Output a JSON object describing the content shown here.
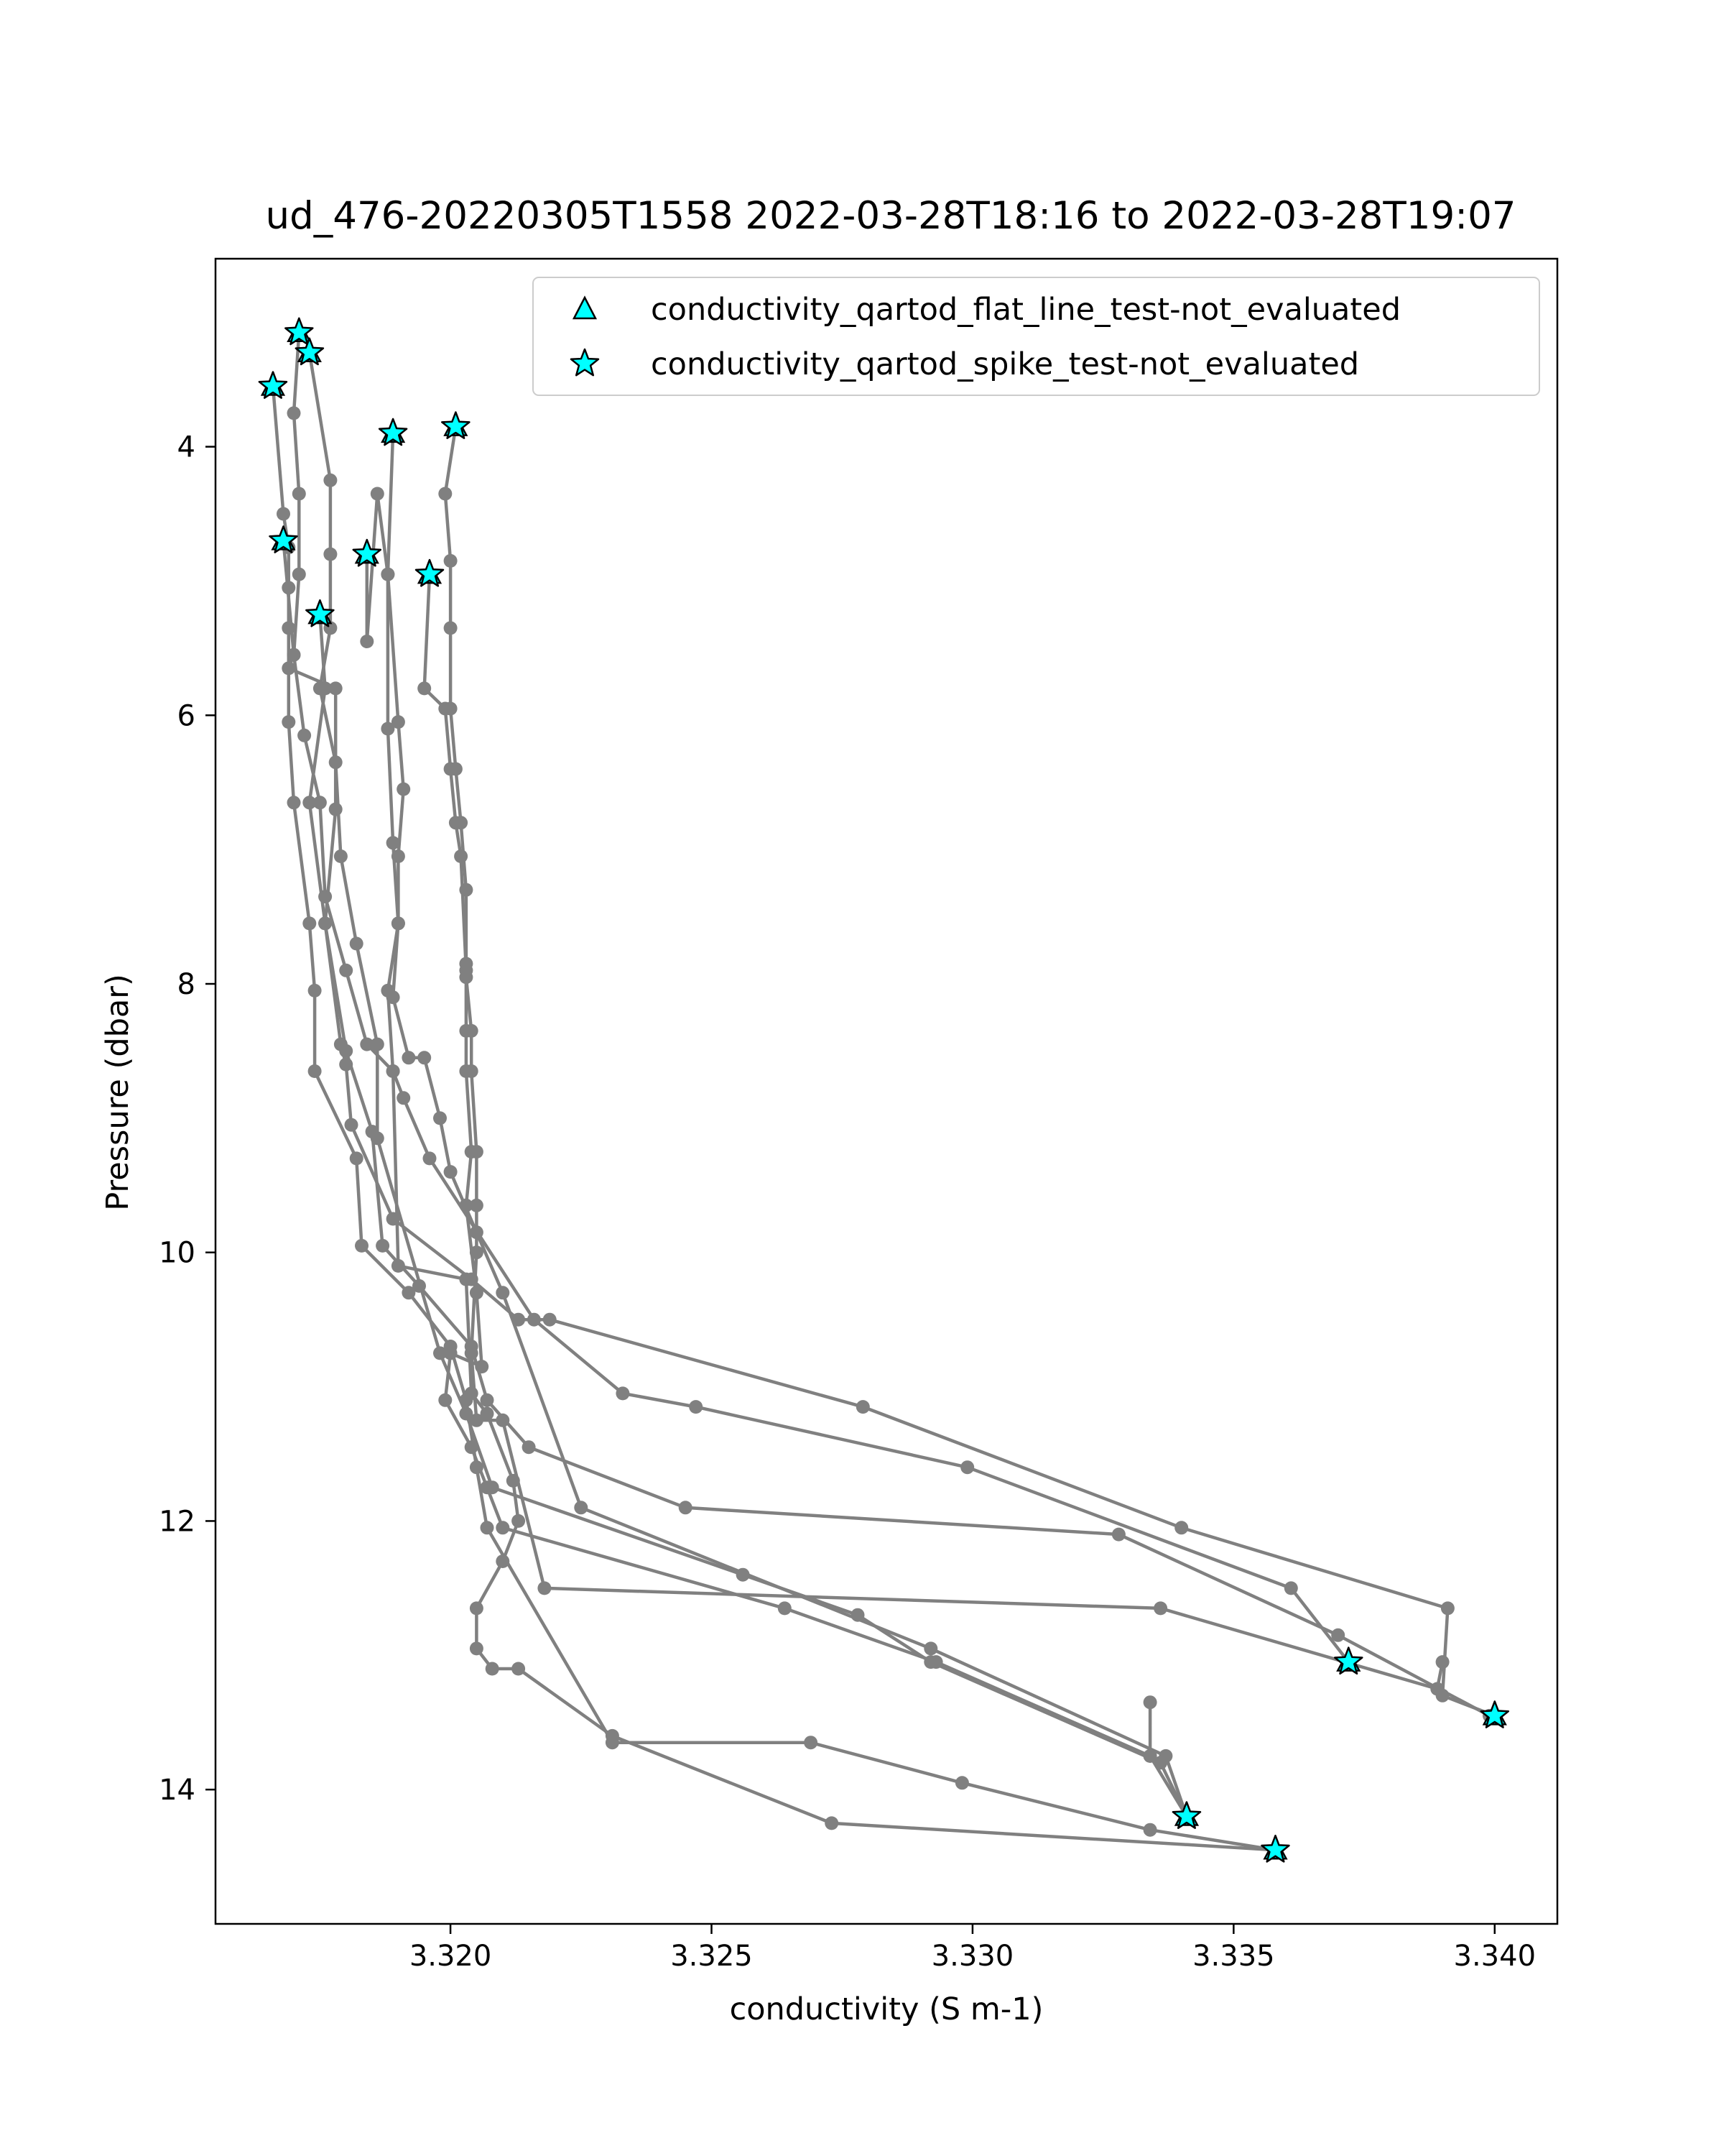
{
  "chart_data": {
    "type": "scatter",
    "title": "ud_476-20220305T1558 2022-03-28T18:16 to 2022-03-28T19:07",
    "xlabel": "conductivity (S m-1)",
    "ylabel": "Pressure (dbar)",
    "xlim": [
      3.3155,
      3.3412
    ],
    "ylim": [
      15.0,
      2.6
    ],
    "y_inverted": true,
    "x_ticks": [
      3.32,
      3.325,
      3.33,
      3.335,
      3.34
    ],
    "x_tick_labels": [
      "3.320",
      "3.325",
      "3.330",
      "3.335",
      "3.340"
    ],
    "y_ticks": [
      4,
      6,
      8,
      10,
      12,
      14
    ],
    "y_tick_labels": [
      "4",
      "6",
      "8",
      "10",
      "12",
      "14"
    ],
    "grid": false,
    "legend_position": "top-right",
    "legend": [
      {
        "label": "conductivity_qartod_flat_line_test-not_evaluated",
        "marker": "triangle",
        "color": "#00ffff"
      },
      {
        "label": "conductivity_qartod_spike_test-not_evaluated",
        "marker": "star",
        "color": "#00ffff"
      }
    ],
    "line_color": "#808080",
    "profiles": [
      {
        "x": [
          3.3166,
          3.3168,
          3.3169,
          3.3169,
          3.3169,
          3.3169,
          3.317,
          3.3173,
          3.3174,
          3.3174,
          3.3182,
          3.3183,
          3.3192,
          3.32,
          3.3203,
          3.3205,
          3.3207,
          3.3231,
          3.3269,
          3.3298,
          3.3334,
          3.3358
        ],
        "y": [
          3.55,
          4.5,
          4.75,
          5.05,
          5.35,
          6.05,
          6.65,
          7.55,
          8.05,
          8.65,
          9.3,
          9.95,
          10.3,
          10.7,
          11.1,
          11.6,
          12.05,
          13.65,
          13.65,
          13.95,
          14.3,
          14.45
        ]
      },
      {
        "x": [
          3.3171,
          3.317,
          3.3171,
          3.3171,
          3.317,
          3.3169,
          3.3178,
          3.3178,
          3.3176,
          3.318,
          3.3185,
          3.3187,
          3.3194,
          3.3204,
          3.3207,
          3.3215,
          3.3245,
          3.3328,
          3.337,
          3.3399
        ],
        "y": [
          3.15,
          3.75,
          4.35,
          4.95,
          5.55,
          5.65,
          5.8,
          6.7,
          7.55,
          8.5,
          9.1,
          9.95,
          10.25,
          10.7,
          11.1,
          11.45,
          11.9,
          12.1,
          12.85,
          13.45
        ]
      },
      {
        "x": [
          3.3173,
          3.3177,
          3.3177,
          3.3177,
          3.3175,
          3.3178,
          3.3179,
          3.3182,
          3.3186,
          3.3186,
          3.3198,
          3.3203,
          3.3208,
          3.3256,
          3.3278,
          3.3292,
          3.3336,
          3.3341
        ],
        "y": [
          3.3,
          4.25,
          4.8,
          5.35,
          5.8,
          6.35,
          7.05,
          7.7,
          8.45,
          9.15,
          10.75,
          11.2,
          11.75,
          12.4,
          12.7,
          13.05,
          13.8,
          14.2
        ]
      },
      {
        "x": [
          3.3168,
          3.317,
          3.3172,
          3.3175,
          3.3176,
          3.318,
          3.3184,
          3.3189,
          3.3191,
          3.3196,
          3.3216,
          3.3233,
          3.3247,
          3.3299,
          3.3361,
          3.3372
        ],
        "y": [
          4.7,
          5.55,
          6.15,
          6.65,
          7.35,
          7.9,
          8.45,
          8.65,
          8.85,
          9.3,
          10.5,
          11.05,
          11.15,
          11.6,
          12.5,
          13.05
        ]
      },
      {
        "x": [
          3.3175,
          3.3176,
          3.3173,
          3.3176,
          3.3179,
          3.318,
          3.3181,
          3.3189,
          3.3204,
          3.3213,
          3.3219,
          3.3279,
          3.334,
          3.3391,
          3.339,
          3.34
        ],
        "y": [
          5.25,
          5.8,
          6.65,
          7.55,
          8.45,
          8.6,
          9.05,
          9.75,
          10.2,
          10.5,
          10.5,
          11.15,
          12.05,
          12.65,
          13.3,
          13.45
        ]
      },
      {
        "x": [
          3.3184,
          3.3184,
          3.3186,
          3.3188,
          3.319,
          3.3191,
          3.319,
          3.319,
          3.3188,
          3.3189,
          3.319,
          3.3203,
          3.3204,
          3.3207,
          3.3212,
          3.3213,
          3.321,
          3.3205,
          3.3205,
          3.3208,
          3.3213,
          3.3231,
          3.3273,
          3.3358
        ],
        "y": [
          4.8,
          5.45,
          4.35,
          4.95,
          6.05,
          6.55,
          7.05,
          7.55,
          8.05,
          8.65,
          10.1,
          10.2,
          11.05,
          11.2,
          11.7,
          12.0,
          12.3,
          12.65,
          12.95,
          13.1,
          13.1,
          13.6,
          14.25,
          14.45
        ]
      },
      {
        "x": [
          3.3189,
          3.3188,
          3.3188,
          3.3189,
          3.319,
          3.3189,
          3.3192,
          3.3195,
          3.3198,
          3.32,
          3.3205,
          3.321,
          3.3225,
          3.3292,
          3.3337,
          3.3341,
          3.3334,
          3.3334
        ],
        "y": [
          3.9,
          4.95,
          6.1,
          6.95,
          7.55,
          8.1,
          8.55,
          8.55,
          9.0,
          9.4,
          9.85,
          10.3,
          11.9,
          12.95,
          13.75,
          14.2,
          13.75,
          13.35
        ]
      },
      {
        "x": [
          3.3196,
          3.3195,
          3.3199,
          3.32,
          3.3201,
          3.3202,
          3.3203,
          3.3203,
          3.3203,
          3.3204,
          3.3203,
          3.3205,
          3.3206,
          3.32,
          3.3199,
          3.3204,
          3.3207,
          3.321,
          3.3264,
          3.3293,
          3.3334
        ],
        "y": [
          4.95,
          5.8,
          5.95,
          6.4,
          6.8,
          7.05,
          7.9,
          8.35,
          8.65,
          9.25,
          9.65,
          10.3,
          10.85,
          10.75,
          11.1,
          11.45,
          11.75,
          12.05,
          12.65,
          13.05,
          13.75
        ]
      },
      {
        "x": [
          3.3201,
          3.3199,
          3.32,
          3.32,
          3.32,
          3.3201,
          3.3202,
          3.3203,
          3.3203,
          3.3203,
          3.3204,
          3.3204,
          3.3205,
          3.3205,
          3.3205,
          3.3204,
          3.3205,
          3.321,
          3.3218,
          3.3336,
          3.3389,
          3.339
        ],
        "y": [
          3.85,
          4.35,
          4.85,
          5.35,
          5.95,
          6.4,
          6.8,
          7.3,
          7.85,
          7.95,
          8.35,
          8.65,
          9.25,
          9.65,
          10.0,
          10.75,
          11.25,
          11.25,
          12.5,
          12.65,
          13.25,
          13.05
        ]
      }
    ],
    "flagged_points": [
      {
        "x": 3.3171,
        "y": 3.15
      },
      {
        "x": 3.3173,
        "y": 3.3
      },
      {
        "x": 3.3166,
        "y": 3.55
      },
      {
        "x": 3.3189,
        "y": 3.9
      },
      {
        "x": 3.3201,
        "y": 3.85
      },
      {
        "x": 3.3168,
        "y": 4.7
      },
      {
        "x": 3.3184,
        "y": 4.8
      },
      {
        "x": 3.3196,
        "y": 4.95
      },
      {
        "x": 3.3175,
        "y": 5.25
      },
      {
        "x": 3.3372,
        "y": 13.05
      },
      {
        "x": 3.34,
        "y": 13.45
      },
      {
        "x": 3.3341,
        "y": 14.2
      },
      {
        "x": 3.3358,
        "y": 14.45
      }
    ]
  }
}
